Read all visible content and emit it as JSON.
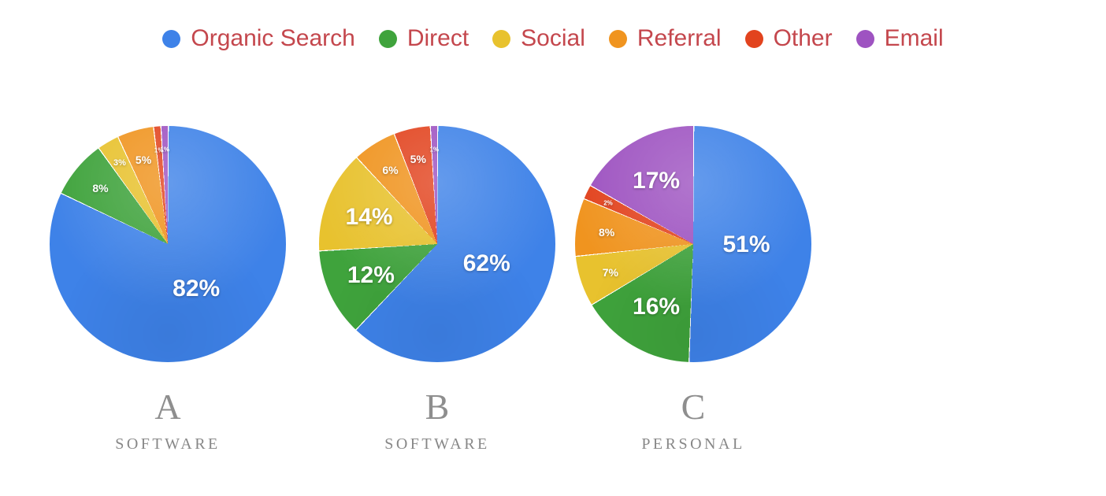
{
  "legend": {
    "text_color": "#c4474d",
    "items": [
      {
        "label": "Organic Search",
        "color": "#3e82e8"
      },
      {
        "label": "Direct",
        "color": "#3fa33c"
      },
      {
        "label": "Social",
        "color": "#e8c22e"
      },
      {
        "label": "Referral",
        "color": "#f0941f"
      },
      {
        "label": "Other",
        "color": "#e2431e"
      },
      {
        "label": "Email",
        "color": "#9e53c1"
      }
    ]
  },
  "chart_data": [
    {
      "type": "pie",
      "title": "A",
      "caption": "SOFTWARE",
      "unit": "%",
      "legend_position": "top",
      "categories": [
        "Organic Search",
        "Direct",
        "Social",
        "Referral",
        "Other",
        "Email"
      ],
      "values": [
        82,
        8,
        3,
        5,
        1,
        1
      ],
      "labels": [
        "82%",
        "8%",
        "3%",
        "5%",
        "1%",
        "1%"
      ]
    },
    {
      "type": "pie",
      "title": "B",
      "caption": "SOFTWARE",
      "unit": "%",
      "legend_position": "top",
      "categories": [
        "Organic Search",
        "Direct",
        "Social",
        "Referral",
        "Other",
        "Email"
      ],
      "values": [
        62,
        12,
        14,
        6,
        5,
        1
      ],
      "labels": [
        "62%",
        "12%",
        "14%",
        "6%",
        "5%",
        "1%"
      ]
    },
    {
      "type": "pie",
      "title": "C",
      "caption": "PERSONAL",
      "unit": "%",
      "legend_position": "top",
      "categories": [
        "Organic Search",
        "Direct",
        "Social",
        "Referral",
        "Other",
        "Email"
      ],
      "values": [
        51,
        16,
        7,
        8,
        2,
        17
      ],
      "labels": [
        "51%",
        "16%",
        "7%",
        "8%",
        "2%",
        "17%"
      ]
    }
  ]
}
